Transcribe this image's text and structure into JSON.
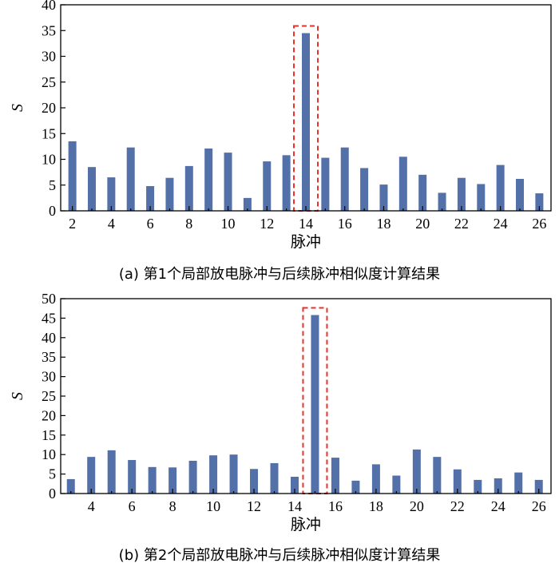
{
  "colors": {
    "bar": "#5470a8",
    "highlight": "#e8322b",
    "axis": "#000000"
  },
  "chart_data": [
    {
      "type": "bar",
      "caption": "(a)  第1个局部放电脉冲与后续脉冲相似度计算结果",
      "xlabel": "脉冲",
      "ylabel": "S",
      "x": [
        2,
        3,
        4,
        5,
        6,
        7,
        8,
        9,
        10,
        11,
        12,
        13,
        14,
        15,
        16,
        17,
        18,
        19,
        20,
        21,
        22,
        23,
        24,
        25,
        26
      ],
      "values": [
        13.5,
        8.5,
        6.5,
        12.3,
        4.8,
        6.4,
        8.7,
        12.1,
        11.3,
        2.5,
        9.6,
        10.8,
        34.5,
        10.3,
        12.3,
        8.3,
        5.1,
        10.5,
        7,
        3.5,
        6.4,
        5.2,
        8.9,
        6.2,
        3.4
      ],
      "xticks": [
        2,
        4,
        6,
        8,
        10,
        12,
        14,
        16,
        18,
        20,
        22,
        24,
        26
      ],
      "yticks": [
        0,
        5,
        10,
        15,
        20,
        25,
        30,
        35,
        40
      ],
      "xlim": [
        1.4,
        26.6
      ],
      "ylim": [
        0,
        40
      ],
      "highlight_x": 14,
      "grid": false
    },
    {
      "type": "bar",
      "caption": "(b)  第2个局部放电脉冲与后续脉冲相似度计算结果",
      "xlabel": "脉冲",
      "ylabel": "S",
      "x": [
        3,
        4,
        5,
        6,
        7,
        8,
        9,
        10,
        11,
        12,
        13,
        14,
        15,
        16,
        17,
        18,
        19,
        20,
        21,
        22,
        23,
        24,
        25,
        26
      ],
      "values": [
        3.7,
        9.4,
        11.1,
        8.6,
        6.8,
        6.7,
        8.4,
        9.8,
        10,
        6.3,
        7.8,
        4.3,
        45.8,
        9.2,
        3.3,
        7.5,
        4.6,
        11.3,
        9.4,
        6.2,
        3.5,
        3.9,
        5.4,
        3.5
      ],
      "xticks": [
        4,
        6,
        8,
        10,
        12,
        14,
        16,
        18,
        20,
        22,
        24,
        26
      ],
      "yticks": [
        0,
        5,
        10,
        15,
        20,
        25,
        30,
        35,
        40,
        45,
        50
      ],
      "xlim": [
        2.5,
        26.6
      ],
      "ylim": [
        0,
        50
      ],
      "highlight_x": 15,
      "grid": false
    }
  ]
}
